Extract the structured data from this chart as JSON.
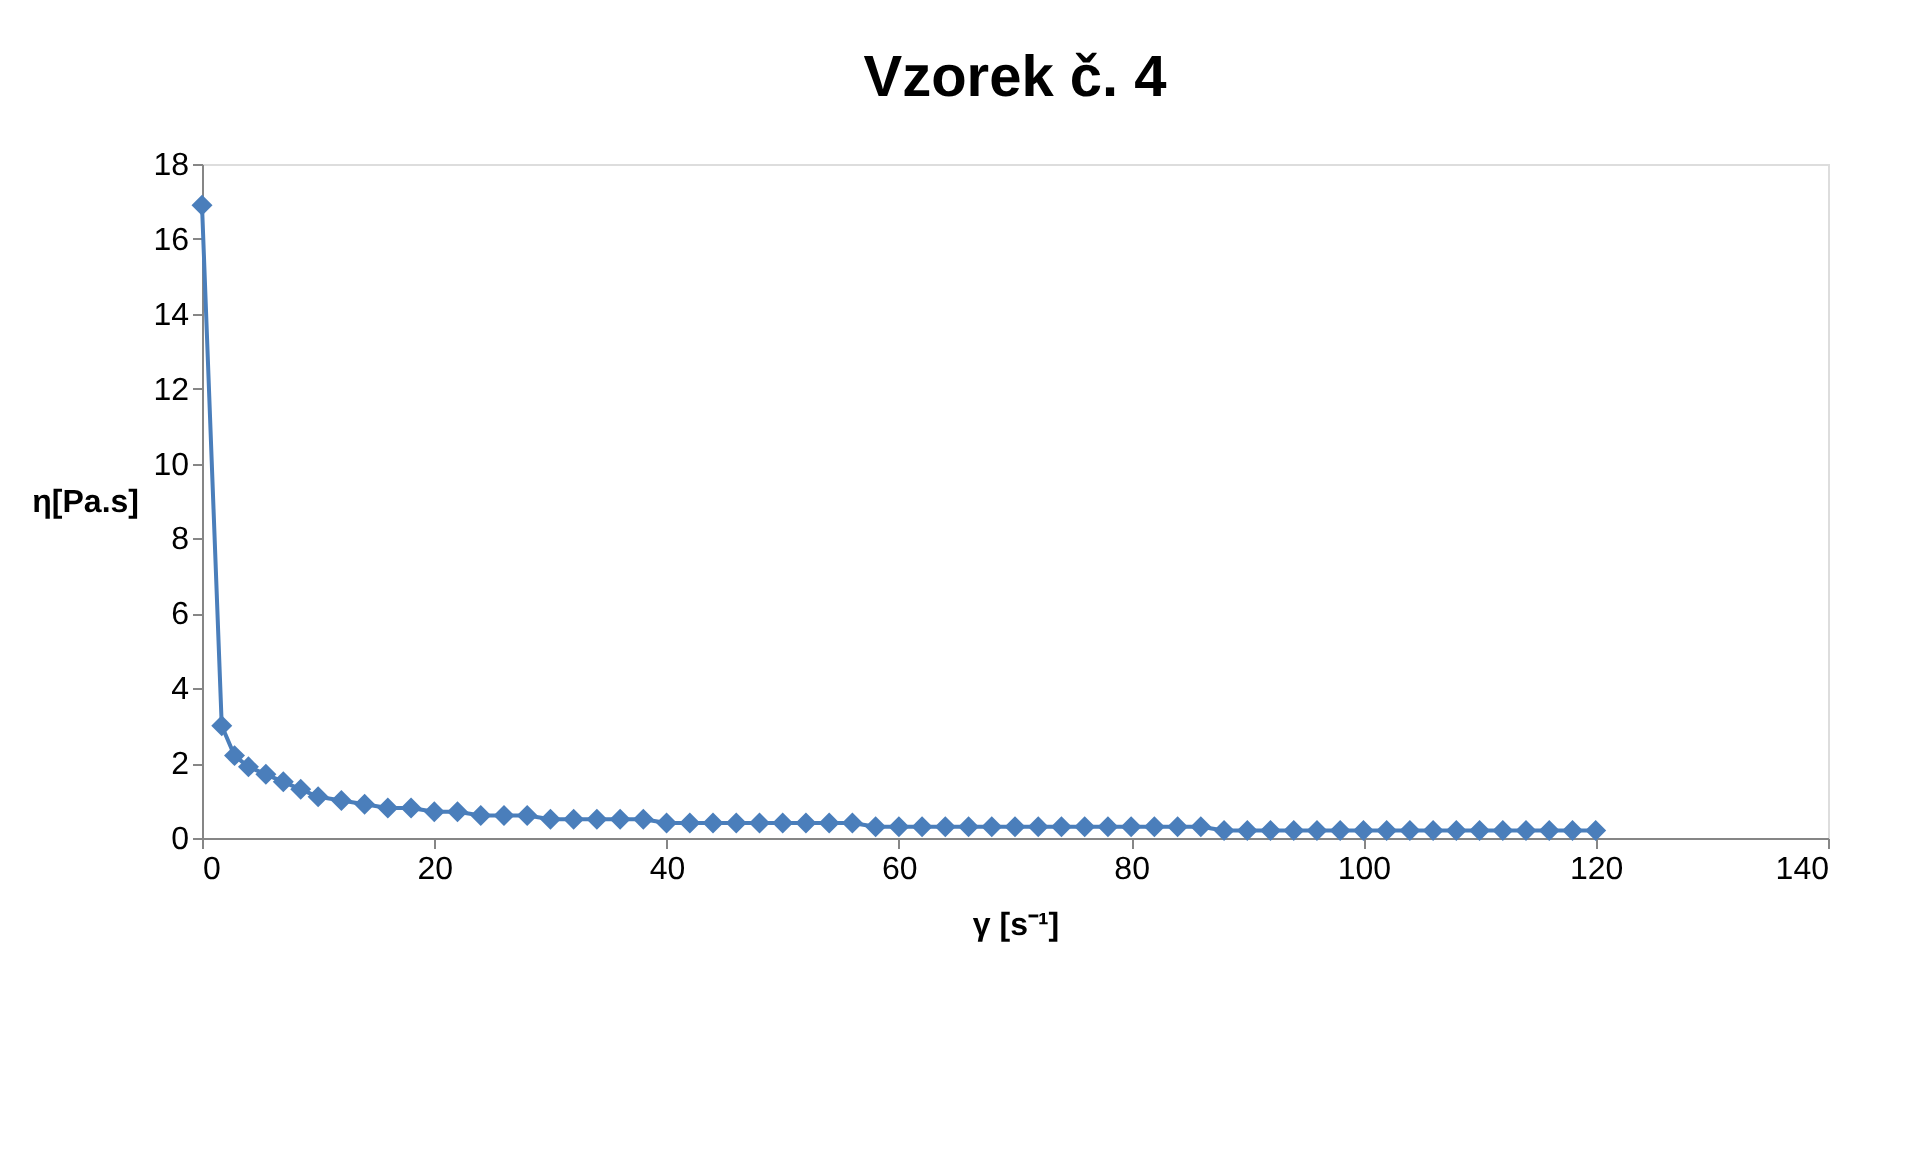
{
  "chart_data": {
    "type": "line",
    "title": "Vzorek č. 4",
    "xlabel": "γ [s⁻¹]",
    "ylabel": "η[Pa.s]",
    "x": [
      0,
      1.7,
      2.8,
      4,
      5.5,
      7,
      8.5,
      10,
      12,
      14,
      16,
      18,
      20,
      22,
      24,
      26,
      28,
      30,
      32,
      34,
      36,
      38,
      40,
      42,
      44,
      46,
      48,
      50,
      52,
      54,
      56,
      58,
      60,
      62,
      64,
      66,
      68,
      70,
      72,
      74,
      76,
      78,
      80,
      82,
      84,
      86,
      88,
      90,
      92,
      94,
      96,
      98,
      100,
      102,
      104,
      106,
      108,
      110,
      112,
      114,
      116,
      118,
      120
    ],
    "series": [
      {
        "color": "#4a7ebb",
        "values": [
          16.9,
          3.0,
          2.2,
          1.9,
          1.7,
          1.5,
          1.3,
          1.1,
          1.0,
          0.9,
          0.8,
          0.8,
          0.7,
          0.7,
          0.6,
          0.6,
          0.6,
          0.5,
          0.5,
          0.5,
          0.5,
          0.5,
          0.4,
          0.4,
          0.4,
          0.4,
          0.4,
          0.4,
          0.4,
          0.4,
          0.4,
          0.3,
          0.3,
          0.3,
          0.3,
          0.3,
          0.3,
          0.3,
          0.3,
          0.3,
          0.3,
          0.3,
          0.3,
          0.3,
          0.3,
          0.3,
          0.2,
          0.2,
          0.2,
          0.2,
          0.2,
          0.2,
          0.2,
          0.2,
          0.2,
          0.2,
          0.2,
          0.2,
          0.2,
          0.2,
          0.2,
          0.2,
          0.2
        ]
      }
    ],
    "xlim": [
      0,
      140
    ],
    "xticks": [
      0,
      20,
      40,
      60,
      80,
      100,
      120,
      140
    ],
    "ylim": [
      0,
      18
    ],
    "yticks": [
      0,
      2,
      4,
      6,
      8,
      10,
      12,
      14,
      16,
      18
    ],
    "grid": false,
    "legend": false,
    "marker": "diamond",
    "line_style": "solid"
  }
}
